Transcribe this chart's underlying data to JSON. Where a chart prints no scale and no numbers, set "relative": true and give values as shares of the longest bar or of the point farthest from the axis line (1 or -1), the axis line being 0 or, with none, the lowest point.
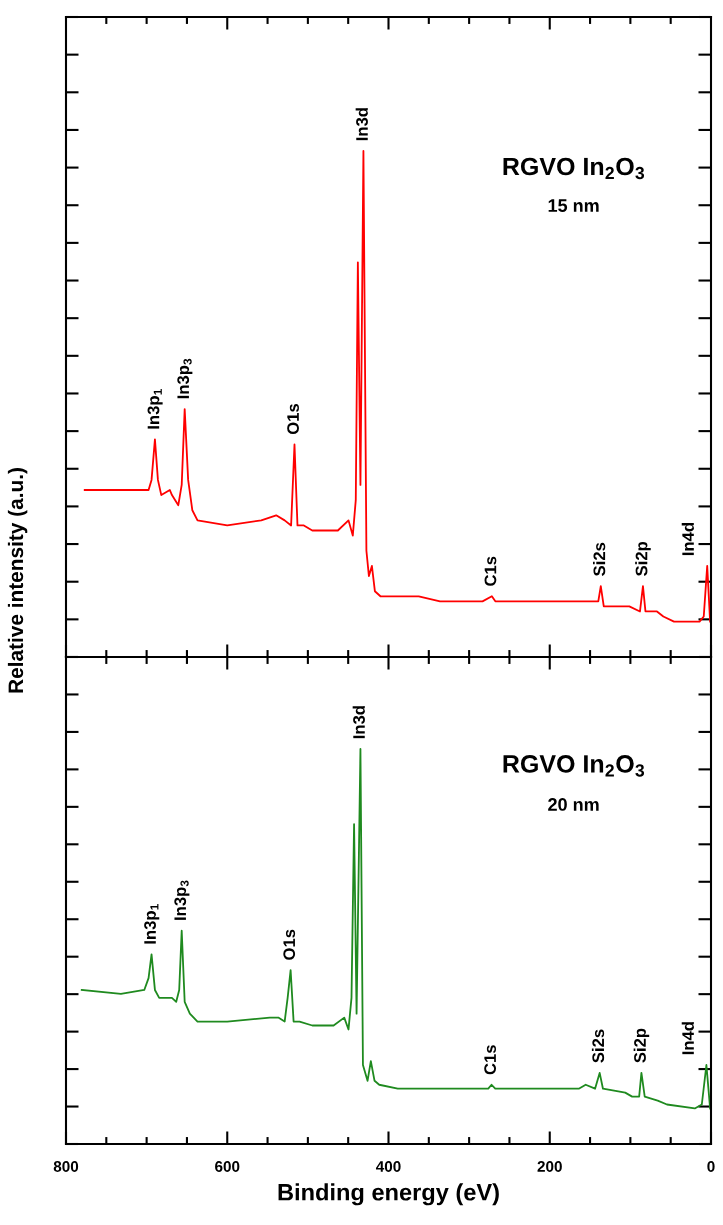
{
  "chart_data": [
    {
      "type": "line",
      "title": "RGVO In$_{2}$O$_{3}$",
      "subtitle": "15 nm",
      "ylabel": "Relative intensity (a.u.)",
      "relative": true,
      "xlim": [
        800,
        0
      ],
      "xticks": [
        800,
        600,
        400,
        200,
        0
      ],
      "tick_labels": false,
      "x": [
        776.8,
        731.9,
        697.6,
        693.9,
        689.7,
        686.0,
        681.8,
        671.2,
        668.6,
        660.7,
        656.5,
        652.8,
        648.5,
        643.3,
        636.9,
        600.0,
        557.8,
        539.3,
        528.8,
        520.8,
        516.6,
        512.9,
        505.0,
        494.5,
        462.8,
        449.6,
        444.3,
        440.6,
        438.0,
        434.8,
        431.1,
        427.4,
        424.3,
        420.6,
        416.9,
        410.0,
        362.5,
        336.1,
        283.4,
        271.8,
        267.5,
        230.6,
        156.7,
        146.2,
        139.8,
        136.7,
        133.0,
        109.2,
        101.3,
        88.1,
        84.4,
        81.3,
        67.0,
        59.1,
        45.9,
        14.2,
        9.0,
        4.7,
        1.1
      ],
      "series": [
        {
          "color": "#ff0000",
          "values": [
            0.33,
            0.33,
            0.33,
            0.35,
            0.43,
            0.35,
            0.32,
            0.33,
            0.32,
            0.3,
            0.34,
            0.49,
            0.35,
            0.29,
            0.27,
            0.26,
            0.27,
            0.28,
            0.27,
            0.26,
            0.42,
            0.26,
            0.26,
            0.25,
            0.25,
            0.27,
            0.24,
            0.31,
            0.78,
            0.34,
            1.0,
            0.21,
            0.16,
            0.18,
            0.13,
            0.12,
            0.12,
            0.11,
            0.11,
            0.12,
            0.11,
            0.11,
            0.11,
            0.11,
            0.11,
            0.14,
            0.1,
            0.1,
            0.1,
            0.09,
            0.14,
            0.09,
            0.09,
            0.08,
            0.07,
            0.07,
            0.08,
            0.18,
            0.07
          ]
        }
      ],
      "annotations": [
        {
          "text": "In3p$_{1}$",
          "x": 689.7,
          "y": 0.43
        },
        {
          "text": "In3p$_{3}$",
          "x": 652.8,
          "y": 0.49
        },
        {
          "text": "O1s",
          "x": 516.6,
          "y": 0.42
        },
        {
          "text": "In3d",
          "x": 431.1,
          "y": 1.0
        },
        {
          "text": "C1s",
          "x": 271.8,
          "y": 0.12
        },
        {
          "text": "Si2s",
          "x": 136.7,
          "y": 0.14
        },
        {
          "text": "Si2p",
          "x": 84.4,
          "y": 0.14
        },
        {
          "text": "In4d",
          "x": 4.7,
          "y": 0.18
        }
      ]
    },
    {
      "type": "line",
      "title": "RGVO In$_{2}$O$_{3}$",
      "subtitle": "20 nm",
      "xlabel": "Binding energy (eV)",
      "relative": true,
      "xlim": [
        800,
        0
      ],
      "xticks": [
        800,
        600,
        400,
        200,
        0
      ],
      "tick_labels": "x",
      "x": [
        780.5,
        731.9,
        702.9,
        697.6,
        693.9,
        689.7,
        684.4,
        668.6,
        663.3,
        659.6,
        656.5,
        652.8,
        646.4,
        636.9,
        600.0,
        547.2,
        536.7,
        528.8,
        525.1,
        521.4,
        517.7,
        510.3,
        494.5,
        468.1,
        454.9,
        449.6,
        445.9,
        442.7,
        439.6,
        434.8,
        431.7,
        426.0,
        421.9,
        417.3,
        411.5,
        388.5,
        359.7,
        307.9,
        276.3,
        272.2,
        267.6,
        192.8,
        164.0,
        155.4,
        143.8,
        138.1,
        134.0,
        106.4,
        97.8,
        89.1,
        86.3,
        82.2,
        66.1,
        54.6,
        20.1,
        11.4,
        5.7,
        1.1
      ],
      "series": [
        {
          "color": "#1f8a1f",
          "values": [
            0.39,
            0.38,
            0.39,
            0.42,
            0.48,
            0.39,
            0.37,
            0.37,
            0.36,
            0.39,
            0.54,
            0.36,
            0.33,
            0.31,
            0.31,
            0.32,
            0.32,
            0.31,
            0.37,
            0.44,
            0.31,
            0.31,
            0.3,
            0.3,
            0.32,
            0.29,
            0.37,
            0.81,
            0.33,
            1.0,
            0.2,
            0.16,
            0.21,
            0.16,
            0.15,
            0.14,
            0.14,
            0.14,
            0.14,
            0.15,
            0.14,
            0.14,
            0.14,
            0.15,
            0.14,
            0.18,
            0.14,
            0.13,
            0.12,
            0.12,
            0.18,
            0.12,
            0.11,
            0.1,
            0.09,
            0.1,
            0.2,
            0.09
          ]
        }
      ],
      "annotations": [
        {
          "text": "In3p$_{1}$",
          "x": 693.9,
          "y": 0.48
        },
        {
          "text": "In3p$_{3}$",
          "x": 656.5,
          "y": 0.54
        },
        {
          "text": "O1s",
          "x": 521.4,
          "y": 0.44
        },
        {
          "text": "In3d",
          "x": 434.8,
          "y": 1.0
        },
        {
          "text": "C1s",
          "x": 272.2,
          "y": 0.15
        },
        {
          "text": "Si2s",
          "x": 138.1,
          "y": 0.18
        },
        {
          "text": "Si2p",
          "x": 86.3,
          "y": 0.18
        },
        {
          "text": "In4d",
          "x": 5.7,
          "y": 0.2
        }
      ]
    }
  ]
}
